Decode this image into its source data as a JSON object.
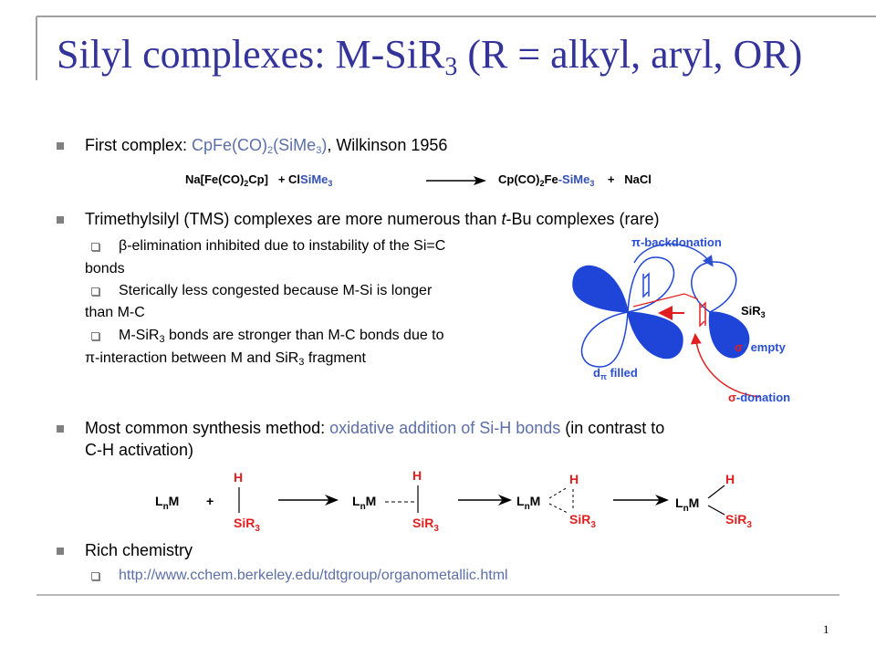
{
  "title": {
    "main": "Silyl complexes: M-SiR",
    "sub": "3",
    "rest": " (R = alkyl, aryl, OR)"
  },
  "bullet_1": {
    "lead": "First complex: ",
    "formula": [
      "CpFe(CO)",
      "2",
      "(SiMe",
      "3",
      ")"
    ],
    "tail": ", Wilkinson 1956"
  },
  "equation_1": {
    "reactant": [
      "Na[Fe(CO)",
      "2",
      "Cp]"
    ],
    "plus_1": "+ Cl",
    "reagent": [
      "SiMe",
      "3"
    ],
    "product": [
      "Cp(CO)",
      "2",
      "Fe",
      "-SiMe",
      "3"
    ],
    "plus_2": "+",
    "byproduct": "NaCl"
  },
  "bullet_2": {
    "text": [
      "Trimethylsilyl (TMS) complexes are more numerous than ",
      "t",
      "-Bu complexes (rare)"
    ],
    "sub_1": [
      "β-elimination inhibited due to instability of the Si=C",
      "bonds"
    ],
    "sub_2": [
      "Sterically less congested because M-Si is longer",
      "than M-C"
    ],
    "sub_3": {
      "line_1": [
        "M-SiR",
        "3",
        " bonds are stronger than M-C bonds due to"
      ],
      "line_2": [
        "π-interaction between M and SiR",
        "3",
        " fragment"
      ]
    }
  },
  "diagram": {
    "backdonation": "π-backdonation",
    "silyl": [
      "SiR",
      "3"
    ],
    "sigma_star": [
      "σ",
      "* empty"
    ],
    "d_pi": [
      "d",
      "π",
      " filled"
    ],
    "donation": [
      "σ",
      "-donation"
    ]
  },
  "bullet_3": {
    "lead": "Most common synthesis method: ",
    "highlight": "oxidative addition of Si-H bonds",
    "tail": [
      " (in contrast to",
      "C-H activation)"
    ]
  },
  "scheme": {
    "plus": "+",
    "species": [
      {
        "metal": [
          "L",
          "n",
          "M"
        ],
        "hydride": "H",
        "silyl": [
          "SiR",
          "3"
        ]
      },
      {
        "metal": [
          "L",
          "n",
          "M"
        ],
        "hydride": "H",
        "silyl": [
          "SiR",
          "3"
        ]
      },
      {
        "metal": [
          "L",
          "n",
          "M"
        ],
        "hydride": "H",
        "silyl": [
          "SiR",
          "3"
        ]
      },
      {
        "metal": [
          "L",
          "n",
          "M"
        ],
        "hydride": "H",
        "silyl": [
          "SiR",
          "3"
        ]
      }
    ]
  },
  "bullet_4": {
    "text": "Rich chemistry",
    "link": "http://www.cchem.berkeley.edu/tdtgroup/organometallic.html"
  },
  "page_number": "1"
}
